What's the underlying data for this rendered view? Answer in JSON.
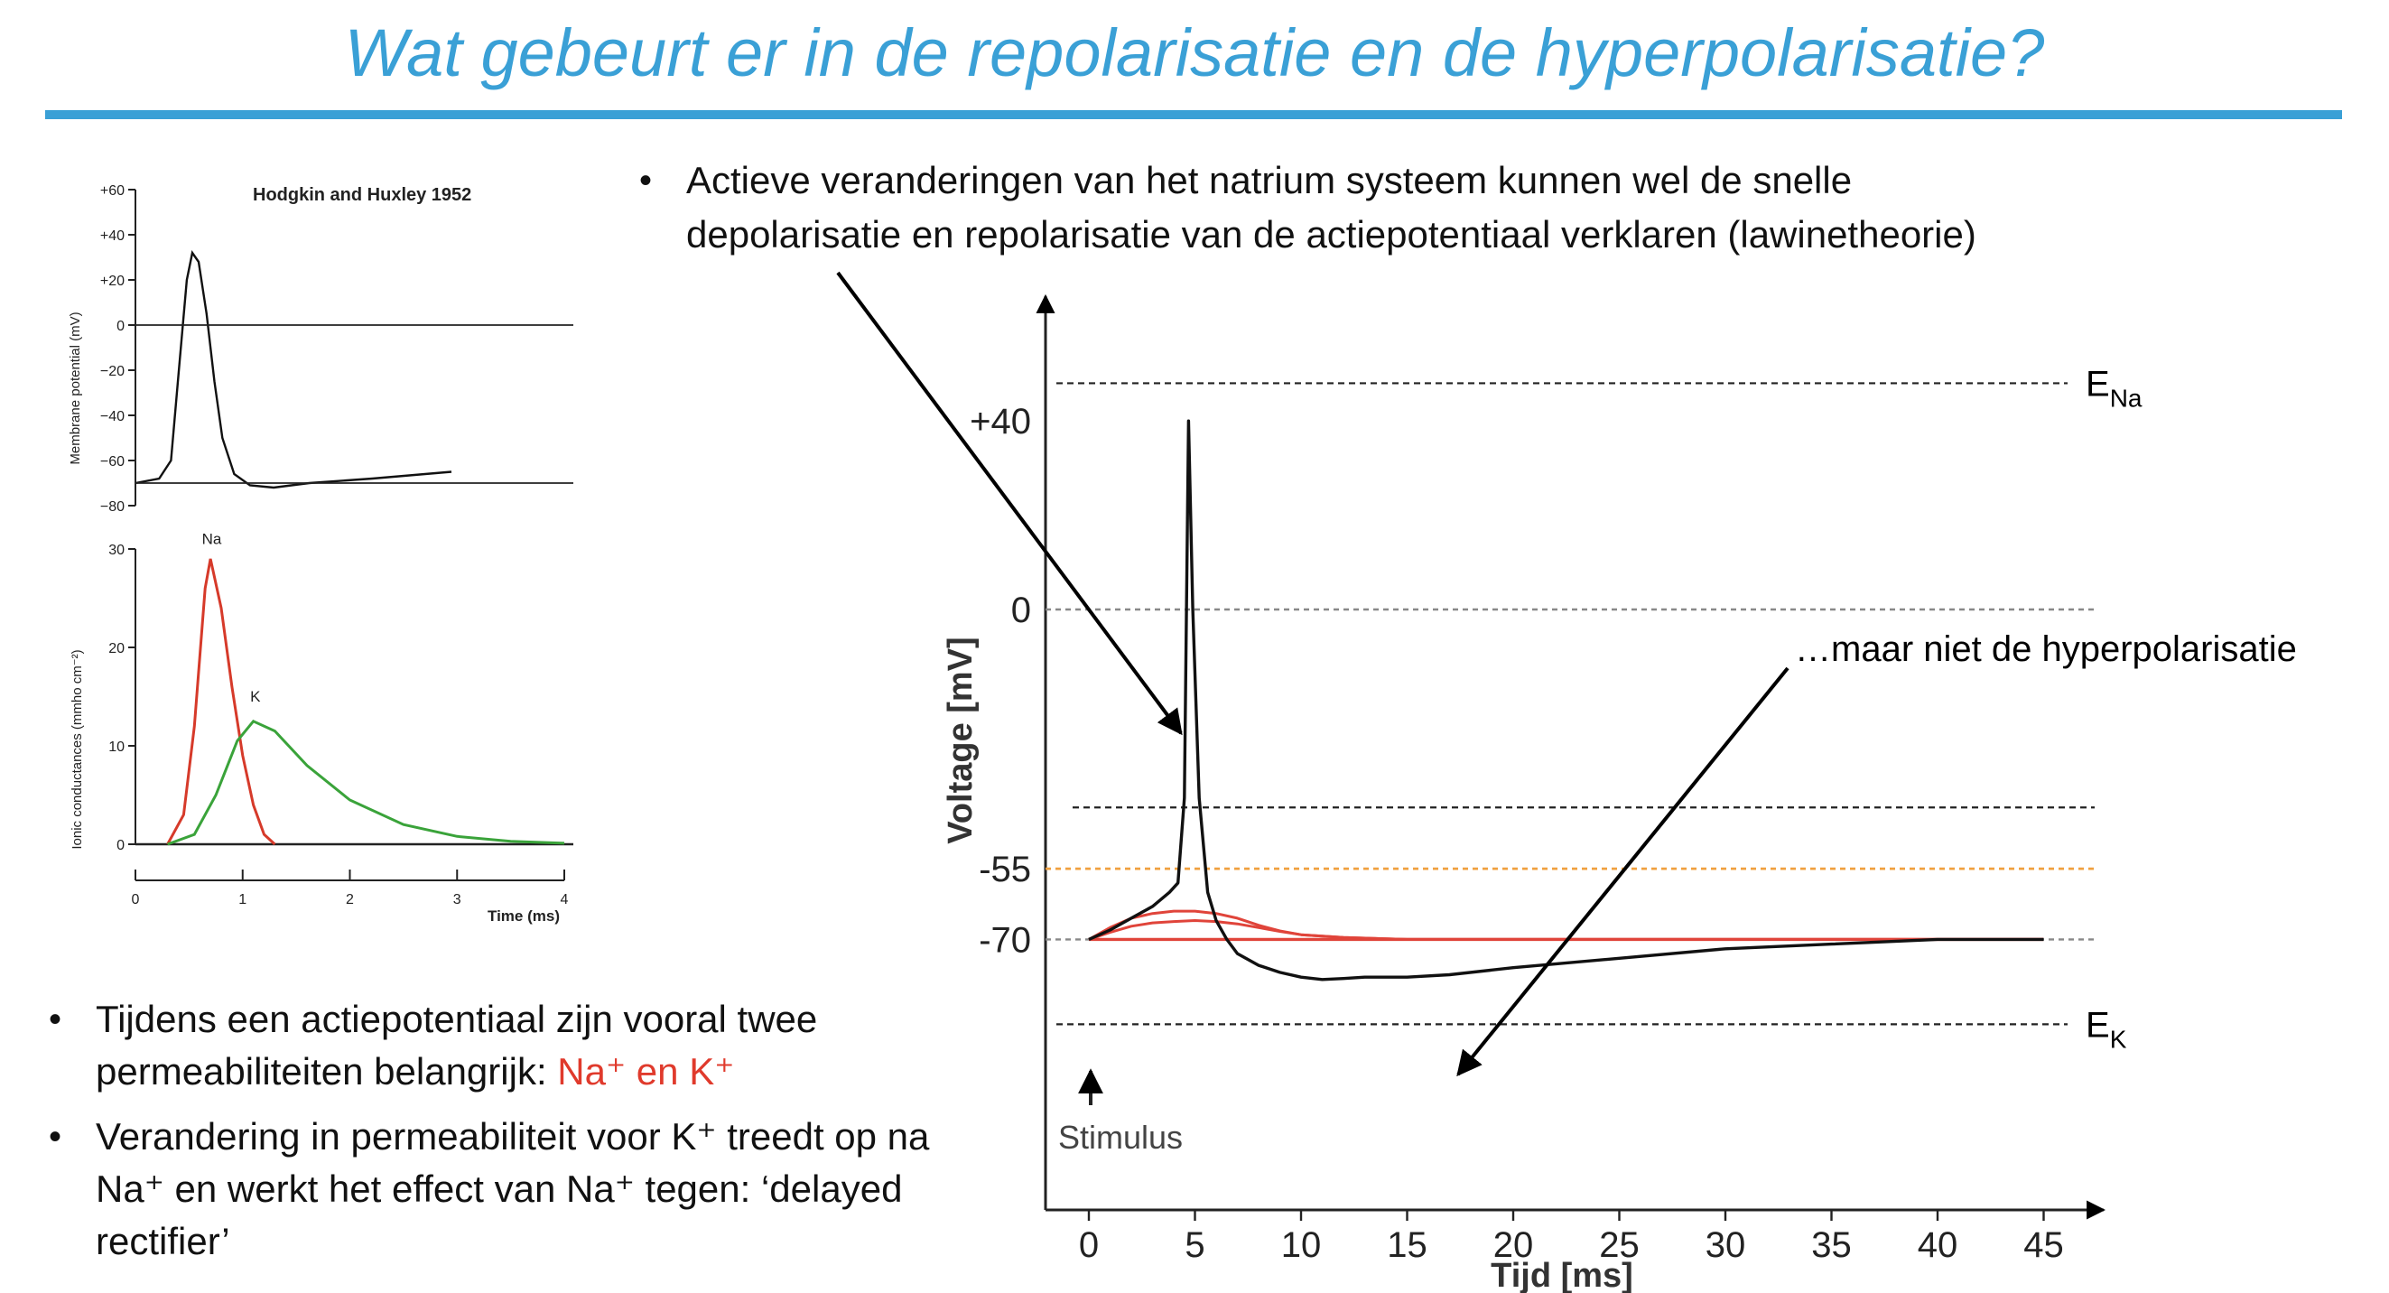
{
  "slide": {
    "title": "Wat gebeurt er in de repolarisatie en de hyperpolarisatie?"
  },
  "bullet_top": {
    "dot": "•",
    "line1": "Actieve veranderingen van het natrium systeem kunnen wel de snelle",
    "line2": "depolarisatie en repolarisatie van de actiepotentiaal verklaren (lawinetheorie)"
  },
  "bullets_bottom": {
    "item1": {
      "dot": "•",
      "part1": "Tijdens een actiepotentiaal zijn vooral twee permeabiliteiten belangrijk: ",
      "part2_red": "Na⁺ en K⁺"
    },
    "item2": {
      "dot": "•",
      "text": "Verandering in permeabiliteit voor K⁺ treedt op na Na⁺ en werkt het effect van Na⁺ tegen: ‘delayed rectifier’"
    }
  },
  "colors": {
    "title_blue": "#3aa0d6",
    "na_red": "#d63a2a",
    "k_green": "#3aa33a",
    "threshold_orange": "#f0a040",
    "trace_black": "#111111",
    "subthreshold_red": "#e0443a"
  },
  "chart_data": [
    {
      "type": "line",
      "title": "Hodgkin and Huxley 1952",
      "xlabel": "Time (ms)",
      "ylabel": "Membrane potential (mV)",
      "ylim": [
        -80,
        60
      ],
      "y_ticks": [
        "+60",
        "+40",
        "+20",
        "0",
        "−20",
        "−40",
        "−60",
        "−80"
      ],
      "y_tick_values": [
        60,
        40,
        20,
        0,
        -20,
        -40,
        -60,
        -80
      ],
      "series": [
        {
          "x": [
            0,
            0.3,
            0.45,
            0.55,
            0.65,
            0.72,
            0.8,
            0.9,
            1.0,
            1.1,
            1.25,
            1.45,
            1.75,
            2.2,
            3.0,
            4.0
          ],
          "values": [
            -70,
            -68,
            -60,
            -20,
            20,
            32,
            28,
            5,
            -25,
            -50,
            -66,
            -71,
            -72,
            -70,
            -68,
            -65
          ]
        }
      ],
      "reference_lines": [
        0,
        -70
      ]
    },
    {
      "type": "line",
      "xlabel": "Time (ms)",
      "ylabel": "Ionic conductances (mmho cm⁻²)",
      "xlim": [
        0,
        4
      ],
      "ylim": [
        0,
        30
      ],
      "x_ticks": [
        "0",
        "1",
        "2",
        "3",
        "4"
      ],
      "y_ticks": [
        "30",
        "20",
        "10",
        "0"
      ],
      "series": [
        {
          "name": "Na",
          "x": [
            0.3,
            0.45,
            0.55,
            0.65,
            0.7,
            0.8,
            0.9,
            1.0,
            1.1,
            1.2,
            1.3
          ],
          "values": [
            0,
            3,
            12,
            26,
            29,
            24,
            16,
            9,
            4,
            1,
            0
          ]
        },
        {
          "name": "K",
          "x": [
            0.3,
            0.55,
            0.75,
            0.95,
            1.1,
            1.3,
            1.6,
            2.0,
            2.5,
            3.0,
            3.5,
            4.0
          ],
          "values": [
            0,
            1,
            5,
            10.5,
            12.5,
            11.5,
            8,
            4.5,
            2,
            0.8,
            0.3,
            0.1
          ]
        }
      ]
    },
    {
      "type": "line",
      "xlabel": "Tijd [ms]",
      "ylabel": "Voltage [mV]",
      "xlim": [
        -2,
        47
      ],
      "x_ticks": [
        "0",
        "5",
        "10",
        "15",
        "20",
        "25",
        "30",
        "35",
        "40",
        "45"
      ],
      "x_tick_values": [
        0,
        5,
        10,
        15,
        20,
        25,
        30,
        35,
        40,
        45
      ],
      "y_ticks": [
        "+40",
        "0",
        "-55",
        "-70"
      ],
      "y_tick_values": [
        40,
        0,
        -55,
        -70
      ],
      "levels": [
        {
          "label": "E",
          "sub": "Na",
          "value": 48
        },
        {
          "label": "E",
          "sub": "K",
          "value": -88
        }
      ],
      "threshold": -55,
      "annotation_stimulus": "Stimulus",
      "annotation_right_prefix": "…maar ",
      "annotation_right_main": "niet de hyperpolarisatie",
      "series": [
        {
          "x": [
            0,
            1,
            2,
            3,
            3.8,
            4.2,
            4.5,
            4.7,
            4.9,
            5.2,
            5.6,
            6.0,
            6.5,
            7.0,
            8,
            9,
            10,
            11,
            12,
            13,
            15,
            17,
            20,
            25,
            30,
            35,
            40,
            45
          ],
          "values": [
            -70,
            -68,
            -65.5,
            -63,
            -60,
            -58,
            -40,
            40,
            0,
            -40,
            -60,
            -66,
            -70,
            -73,
            -75.5,
            -77,
            -78,
            -78.5,
            -78.3,
            -78,
            -78,
            -77.5,
            -76,
            -74,
            -72,
            -71,
            -70,
            -70
          ]
        },
        {
          "x": [
            0,
            1,
            2,
            3,
            4,
            5,
            6,
            7,
            8,
            9,
            10,
            12,
            15,
            20,
            45
          ],
          "values": [
            -70,
            -67.5,
            -65.5,
            -64.5,
            -64,
            -64,
            -64.5,
            -65.5,
            -67,
            -68.2,
            -69,
            -69.6,
            -70,
            -70,
            -70
          ]
        },
        {
          "x": [
            0,
            1,
            2,
            3,
            4,
            5,
            6,
            7,
            8,
            9,
            10,
            12,
            15,
            20,
            45
          ],
          "values": [
            -70,
            -68.5,
            -67.2,
            -66.5,
            -66.2,
            -66,
            -66.2,
            -66.7,
            -67.5,
            -68.3,
            -69,
            -69.6,
            -70,
            -70,
            -70
          ]
        },
        {
          "x": [
            0,
            45
          ],
          "values": [
            -70,
            -70
          ]
        }
      ]
    }
  ]
}
